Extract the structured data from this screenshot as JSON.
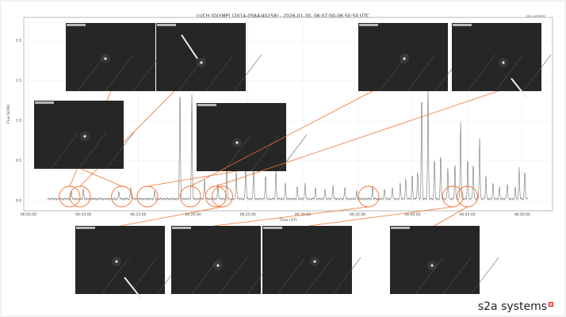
{
  "chart_data": {
    "type": "line",
    "title": "LUCH (OLYMP) (2014-058A/40258) - 2026-01-30, 06:07:00-06:50:50 UTC",
    "xlabel": "Time (UT)",
    "ylabel": "Flux [kDN]",
    "xlim": [
      "06:05:00",
      "06:51:30"
    ],
    "ylim": [
      -0.05,
      2.2
    ],
    "x_ticks": [
      "06:05:00",
      "06:10:00",
      "06:15:00",
      "06:20:00",
      "06:25:00",
      "06:30:00",
      "06:35:00",
      "06:40:00",
      "06:45:00",
      "06:50:00"
    ],
    "y_ticks": [
      "0.0",
      "0.5",
      "1.0",
      "1.5",
      "2.0"
    ],
    "grid": true,
    "series_color": "#777777",
    "highlight_color": "#f07030",
    "baseline_flux": 0.02,
    "data_range": [
      "06:06:45",
      "06:50:30"
    ],
    "peaks": [
      [
        "06:08:54",
        0.1
      ],
      [
        "06:10:00",
        0.12
      ],
      [
        "06:13:14",
        0.1
      ],
      [
        "06:14:19",
        0.15
      ],
      [
        "06:16:29",
        0.1
      ],
      [
        "06:18:48",
        1.37
      ],
      [
        "06:19:53",
        1.3
      ],
      [
        "06:21:02",
        0.25
      ],
      [
        "06:22:16",
        0.2
      ],
      [
        "06:23:04",
        0.4
      ],
      [
        "06:23:56",
        0.35
      ],
      [
        "06:24:48",
        0.45
      ],
      [
        "06:25:31",
        0.4
      ],
      [
        "06:26:36",
        0.3
      ],
      [
        "06:27:33",
        0.35
      ],
      [
        "06:28:25",
        0.2
      ],
      [
        "06:29:30",
        0.15
      ],
      [
        "06:30:13",
        0.2
      ],
      [
        "06:31:09",
        0.15
      ],
      [
        "06:32:01",
        0.12
      ],
      [
        "06:32:45",
        0.18
      ],
      [
        "06:33:50",
        0.15
      ],
      [
        "06:34:55",
        0.1
      ],
      [
        "06:36:21",
        0.15
      ],
      [
        "06:37:26",
        0.12
      ],
      [
        "06:38:10",
        0.15
      ],
      [
        "06:38:53",
        0.2
      ],
      [
        "06:39:23",
        0.25
      ],
      [
        "06:39:58",
        0.3
      ],
      [
        "06:40:28",
        0.35
      ],
      [
        "06:40:50",
        1.3
      ],
      [
        "06:41:25",
        1.37
      ],
      [
        "06:42:00",
        0.5
      ],
      [
        "06:42:34",
        0.55
      ],
      [
        "06:43:13",
        0.4
      ],
      [
        "06:43:52",
        0.45
      ],
      [
        "06:44:23",
        0.97
      ],
      [
        "06:45:02",
        0.5
      ],
      [
        "06:45:32",
        0.45
      ],
      [
        "06:46:07",
        0.77
      ],
      [
        "06:46:41",
        0.3
      ],
      [
        "06:47:20",
        0.2
      ],
      [
        "06:47:55",
        0.15
      ],
      [
        "06:48:38",
        0.2
      ],
      [
        "06:49:22",
        0.15
      ],
      [
        "06:49:43",
        0.4
      ],
      [
        "06:50:14",
        0.35
      ]
    ],
    "highlighted_times": [
      "06:08:45",
      "06:09:42",
      "06:13:30",
      "06:15:50",
      "06:19:45",
      "06:22:05",
      "06:22:40",
      "06:36:00",
      "06:43:40",
      "06:45:00"
    ]
  },
  "branding": {
    "small": "s2a systems",
    "logo": "s2a systems"
  }
}
